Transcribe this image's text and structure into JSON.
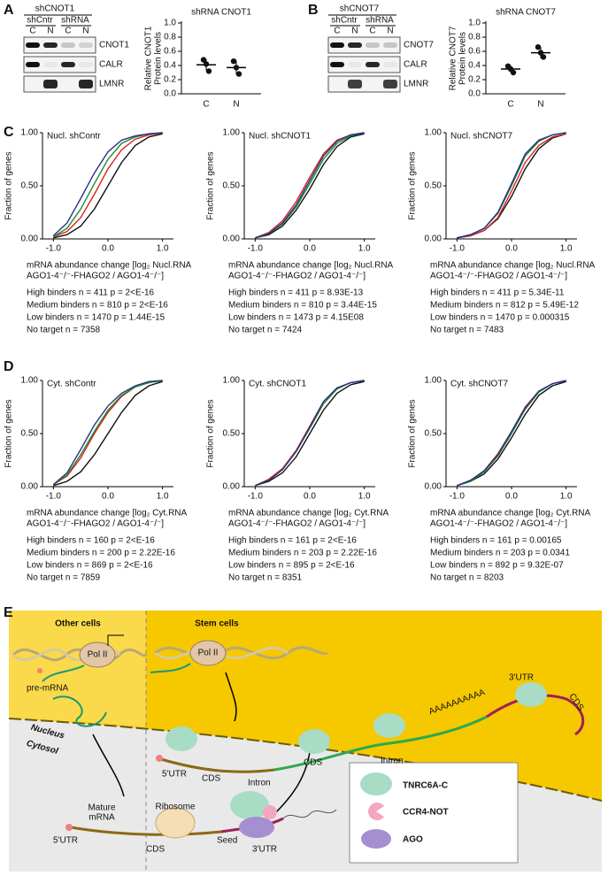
{
  "panel_labels": [
    "A",
    "B",
    "C",
    "D",
    "E"
  ],
  "blots": [
    {
      "header": "shCNOT1",
      "groups": [
        "shCntr",
        "shRNA"
      ],
      "lanes": [
        "C",
        "N",
        "C",
        "N"
      ],
      "rows": [
        "CNOT1",
        "CALR",
        "LMNR"
      ]
    },
    {
      "header": "shCNOT7",
      "groups": [
        "shCntr",
        "shRNA"
      ],
      "lanes": [
        "C",
        "N",
        "C",
        "N"
      ],
      "rows": [
        "CNOT7",
        "CALR",
        "LMNR"
      ]
    }
  ],
  "chart_data": [
    {
      "type": "dot",
      "title": "shRNA CNOT1",
      "ylabel": [
        "Relative CNOT1",
        "Protein levels"
      ],
      "categories": [
        "C",
        "N"
      ],
      "values": [
        0.41,
        0.37
      ],
      "errors": [
        0.08,
        0.1
      ],
      "points": [
        [
          0.48,
          0.42,
          0.32
        ],
        [
          0.46,
          0.37,
          0.28
        ]
      ],
      "ylim": [
        0,
        1
      ],
      "yticks": [
        {
          "value": 0,
          "label": "0.0"
        },
        {
          "value": 0.2,
          "label": "0.2"
        },
        {
          "value": 0.4,
          "label": "0.4"
        },
        {
          "value": 0.6,
          "label": "0.6"
        },
        {
          "value": 0.8,
          "label": "0.8"
        },
        {
          "value": 1,
          "label": "1.0"
        }
      ]
    },
    {
      "type": "dot",
      "title": "shRNA CNOT7",
      "ylabel": [
        "Relative CNOT7",
        "Protein levels"
      ],
      "categories": [
        "C",
        "N"
      ],
      "values": [
        0.35,
        0.58
      ],
      "errors": [
        0.05,
        0.08
      ],
      "points": [
        [
          0.39,
          0.35,
          0.3
        ],
        [
          0.66,
          0.58,
          0.52
        ]
      ],
      "ylim": [
        0,
        1
      ],
      "yticks": [
        {
          "value": 0,
          "label": "0.0"
        },
        {
          "value": 0.2,
          "label": "0.2"
        },
        {
          "value": 0.4,
          "label": "0.4"
        },
        {
          "value": 0.6,
          "label": "0.6"
        },
        {
          "value": 0.8,
          "label": "0.8"
        },
        {
          "value": 1,
          "label": "1.0"
        }
      ]
    },
    {
      "type": "line",
      "title": "Nucl. shContr",
      "ylabel": "Fraction of genes",
      "xlabel": [
        "mRNA abundance change [log₂ Nucl.RNA",
        "AGO1-4⁻/⁻-FHAGO2 / AGO1-4⁻/⁻]"
      ],
      "x": [
        -1,
        -0.75,
        -0.5,
        -0.25,
        0,
        0.25,
        0.5,
        0.75,
        1
      ],
      "xlim": [
        -1.2,
        1.2
      ],
      "ylim": [
        0,
        1
      ],
      "xticks": [
        {
          "value": -1,
          "label": "-1.0"
        },
        {
          "value": 0,
          "label": "0.0"
        },
        {
          "value": 1,
          "label": "1.0"
        }
      ],
      "yticks": [
        {
          "value": 0,
          "label": "0.00"
        },
        {
          "value": 0.5,
          "label": "0.50"
        },
        {
          "value": 1,
          "label": "1.00"
        }
      ],
      "series": [
        {
          "name": "High binders n = 411 p = 2<E-16",
          "color": "#27348b",
          "values": [
            0.03,
            0.15,
            0.38,
            0.62,
            0.82,
            0.93,
            0.97,
            0.99,
            1
          ]
        },
        {
          "name": "Medium binders n = 810 p = 2<E-16",
          "color": "#1e8c2e",
          "values": [
            0.02,
            0.1,
            0.28,
            0.52,
            0.75,
            0.9,
            0.96,
            0.99,
            1
          ]
        },
        {
          "name": "Low binders n = 1470 p = 1.44E-15",
          "color": "#e0211d",
          "values": [
            0.02,
            0.07,
            0.2,
            0.42,
            0.66,
            0.84,
            0.94,
            0.98,
            1
          ]
        },
        {
          "name": "No target n = 7358",
          "color": "#111111",
          "values": [
            0.01,
            0.04,
            0.12,
            0.28,
            0.5,
            0.72,
            0.88,
            0.96,
            0.99
          ]
        }
      ]
    },
    {
      "type": "line",
      "title": "Nucl. shCNOT1",
      "ylabel": "Fraction of genes",
      "xlabel": [
        "mRNA abundance change [log₂ Nucl.RNA",
        "AGO1-4⁻/⁻-FHAGO2 / AGO1-4⁻/⁻]"
      ],
      "x": [
        -1,
        -0.75,
        -0.5,
        -0.25,
        0,
        0.25,
        0.5,
        0.75,
        1
      ],
      "xlim": [
        -1.2,
        1.2
      ],
      "ylim": [
        0,
        1
      ],
      "xticks": [
        {
          "value": -1,
          "label": "-1.0"
        },
        {
          "value": 0,
          "label": "0.0"
        },
        {
          "value": 1,
          "label": "1.0"
        }
      ],
      "yticks": [
        {
          "value": 0,
          "label": "0.00"
        },
        {
          "value": 0.5,
          "label": "0.50"
        },
        {
          "value": 1,
          "label": "1.00"
        }
      ],
      "series": [
        {
          "name": "High binders n = 411 p = 8.93E-13",
          "color": "#27348b",
          "values": [
            0.01,
            0.05,
            0.15,
            0.32,
            0.55,
            0.78,
            0.92,
            0.98,
            1
          ]
        },
        {
          "name": "Medium binders n = 810 p = 3.44E-15",
          "color": "#1e8c2e",
          "values": [
            0.01,
            0.05,
            0.14,
            0.3,
            0.52,
            0.75,
            0.9,
            0.97,
            1
          ]
        },
        {
          "name": "Low binders n = 1473 p = 4.15E08",
          "color": "#e0211d",
          "values": [
            0.01,
            0.06,
            0.17,
            0.35,
            0.58,
            0.8,
            0.93,
            0.98,
            1
          ]
        },
        {
          "name": "No target n = 7424",
          "color": "#111111",
          "values": [
            0.01,
            0.04,
            0.12,
            0.27,
            0.47,
            0.7,
            0.87,
            0.96,
            0.99
          ]
        }
      ]
    },
    {
      "type": "line",
      "title": "Nucl. shCNOT7",
      "ylabel": "Fraction of genes",
      "xlabel": [
        "mRNA abundance change [log₂ Nucl.RNA",
        "AGO1-4⁻/⁻-FHAGO2 / AGO1-4⁻/⁻]"
      ],
      "x": [
        -1,
        -0.75,
        -0.5,
        -0.25,
        0,
        0.25,
        0.5,
        0.75,
        1
      ],
      "xlim": [
        -1.2,
        1.2
      ],
      "ylim": [
        0,
        1
      ],
      "xticks": [
        {
          "value": -1,
          "label": "-1.0"
        },
        {
          "value": 0,
          "label": "0.0"
        },
        {
          "value": 1,
          "label": "1.0"
        }
      ],
      "yticks": [
        {
          "value": 0,
          "label": "0.00"
        },
        {
          "value": 0.5,
          "label": "0.50"
        },
        {
          "value": 1,
          "label": "1.00"
        }
      ],
      "series": [
        {
          "name": "High binders n = 411 p = 5.34E-11",
          "color": "#27348b",
          "values": [
            0.01,
            0.04,
            0.1,
            0.25,
            0.52,
            0.8,
            0.93,
            0.98,
            1
          ]
        },
        {
          "name": "Medium binders n = 812 p = 5.49E-12",
          "color": "#1e8c2e",
          "values": [
            0.01,
            0.04,
            0.1,
            0.24,
            0.5,
            0.78,
            0.92,
            0.98,
            1
          ]
        },
        {
          "name": "Low binders n = 1470 p = 0.000315",
          "color": "#e0211d",
          "values": [
            0.01,
            0.03,
            0.08,
            0.2,
            0.45,
            0.72,
            0.88,
            0.96,
            0.99
          ]
        },
        {
          "name": "No target n = 7483",
          "color": "#111111",
          "values": [
            0.01,
            0.03,
            0.08,
            0.19,
            0.4,
            0.66,
            0.85,
            0.95,
            0.99
          ]
        }
      ]
    },
    {
      "type": "line",
      "title": "Cyt. shContr",
      "ylabel": "Fraction of genes",
      "xlabel": [
        "mRNA abundance change [log₂ Cyt.RNA",
        "AGO1-4⁻/⁻-FHAGO2 / AGO1-4⁻/⁻]"
      ],
      "x": [
        -1,
        -0.75,
        -0.5,
        -0.25,
        0,
        0.25,
        0.5,
        0.75,
        1
      ],
      "xlim": [
        -1.2,
        1.2
      ],
      "ylim": [
        0,
        1
      ],
      "xticks": [
        {
          "value": -1,
          "label": "-1.0"
        },
        {
          "value": 0,
          "label": "0.0"
        },
        {
          "value": 1,
          "label": "1.0"
        }
      ],
      "yticks": [
        {
          "value": 0,
          "label": "0.00"
        },
        {
          "value": 0.5,
          "label": "0.50"
        },
        {
          "value": 1,
          "label": "1.00"
        }
      ],
      "series": [
        {
          "name": "High binders n = 160 p = 2<E-16",
          "color": "#27348b",
          "values": [
            0.02,
            0.13,
            0.35,
            0.58,
            0.76,
            0.88,
            0.95,
            0.99,
            1
          ]
        },
        {
          "name": "Medium binders n = 200 p = 2.22E-16",
          "color": "#1e8c2e",
          "values": [
            0.02,
            0.11,
            0.3,
            0.52,
            0.72,
            0.86,
            0.94,
            0.98,
            1
          ]
        },
        {
          "name": "Low binders n = 869 p = 2<E-16",
          "color": "#e0211d",
          "values": [
            0.02,
            0.1,
            0.27,
            0.5,
            0.7,
            0.85,
            0.94,
            0.98,
            1
          ]
        },
        {
          "name": "No target n = 7859",
          "color": "#111111",
          "values": [
            0.01,
            0.05,
            0.14,
            0.3,
            0.5,
            0.7,
            0.86,
            0.95,
            0.99
          ]
        }
      ]
    },
    {
      "type": "line",
      "title": "Cyt. shCNOT1",
      "ylabel": "Fraction of genes",
      "xlabel": [
        "mRNA abundance change [log₂ Cyt.RNA",
        "AGO1-4⁻/⁻-FHAGO2 / AGO1-4⁻/⁻]"
      ],
      "x": [
        -1,
        -0.75,
        -0.5,
        -0.25,
        0,
        0.25,
        0.5,
        0.75,
        1
      ],
      "xlim": [
        -1.2,
        1.2
      ],
      "ylim": [
        0,
        1
      ],
      "xticks": [
        {
          "value": -1,
          "label": "-1.0"
        },
        {
          "value": 0,
          "label": "0.0"
        },
        {
          "value": 1,
          "label": "1.0"
        }
      ],
      "yticks": [
        {
          "value": 0,
          "label": "0.00"
        },
        {
          "value": 0.5,
          "label": "0.50"
        },
        {
          "value": 1,
          "label": "1.00"
        }
      ],
      "series": [
        {
          "name": "High binders n = 161 p = 2<E-16",
          "color": "#27348b",
          "values": [
            0.01,
            0.06,
            0.16,
            0.33,
            0.56,
            0.8,
            0.93,
            0.98,
            1
          ]
        },
        {
          "name": "Medium binders n = 203 p = 2.22E-16",
          "color": "#1e8c2e",
          "values": [
            0.01,
            0.06,
            0.16,
            0.33,
            0.55,
            0.78,
            0.92,
            0.98,
            1
          ]
        },
        {
          "name": "Low binders n = 895 p = 2<E-16",
          "color": "#e0211d",
          "values": [
            0.01,
            0.07,
            0.17,
            0.34,
            0.57,
            0.8,
            0.93,
            0.98,
            1
          ]
        },
        {
          "name": "No target n = 8351",
          "color": "#111111",
          "values": [
            0.01,
            0.05,
            0.13,
            0.28,
            0.5,
            0.72,
            0.88,
            0.96,
            0.99
          ]
        }
      ]
    },
    {
      "type": "line",
      "title": "Cyt. shCNOT7",
      "ylabel": "Fraction of genes",
      "xlabel": [
        "mRNA abundance change [log₂ Cyt.RNA",
        "AGO1-4⁻/⁻-FHAGO2 / AGO1-4⁻/⁻]"
      ],
      "x": [
        -1,
        -0.75,
        -0.5,
        -0.25,
        0,
        0.25,
        0.5,
        0.75,
        1
      ],
      "xlim": [
        -1.2,
        1.2
      ],
      "ylim": [
        0,
        1
      ],
      "xticks": [
        {
          "value": -1,
          "label": "-1.0"
        },
        {
          "value": 0,
          "label": "0.0"
        },
        {
          "value": 1,
          "label": "1.0"
        }
      ],
      "yticks": [
        {
          "value": 0,
          "label": "0.00"
        },
        {
          "value": 0.5,
          "label": "0.50"
        },
        {
          "value": 1,
          "label": "1.00"
        }
      ],
      "series": [
        {
          "name": "High binders n = 161 p = 0.00165",
          "color": "#27348b",
          "values": [
            0.01,
            0.06,
            0.15,
            0.3,
            0.52,
            0.74,
            0.9,
            0.97,
            1
          ]
        },
        {
          "name": "Medium binders n = 203 p = 0.0341",
          "color": "#1e8c2e",
          "values": [
            0.01,
            0.05,
            0.14,
            0.29,
            0.5,
            0.73,
            0.89,
            0.97,
            1
          ]
        },
        {
          "name": "Low binders n = 892 p = 9.32E-07",
          "color": "#e0211d",
          "values": [
            0.01,
            0.06,
            0.15,
            0.31,
            0.52,
            0.75,
            0.9,
            0.97,
            1
          ]
        },
        {
          "name": "No target n = 8203",
          "color": "#111111",
          "values": [
            0.01,
            0.05,
            0.12,
            0.26,
            0.46,
            0.68,
            0.86,
            0.95,
            0.99
          ]
        }
      ]
    }
  ],
  "diagram": {
    "other_cells": "Other cells",
    "stem_cells": "Stem cells",
    "pol2_left": "Pol II",
    "pol2_right": "Pol II",
    "pre_mrna": "pre-mRNA",
    "nucleus": "Nucleus",
    "cytosol": "Cytosol",
    "utr5_top": "5'UTR",
    "cds_1": "CDS",
    "intron_1": "Intron",
    "cds_2": "CDS",
    "intron_2": "Intron",
    "cds_3": "CDS",
    "utr3_top": "3'UTR",
    "polya": "AAAAAAAAAA",
    "mature_mrna": [
      "Mature",
      "mRNA"
    ],
    "ribosome": "Ribosome",
    "utr5_bottom": "5'UTR",
    "cds_bottom": "CDS",
    "seed": "Seed",
    "utr3_bottom": "3'UTR",
    "legend": [
      "TNRC6A-C",
      "CCR4-NOT",
      "AGO"
    ]
  }
}
